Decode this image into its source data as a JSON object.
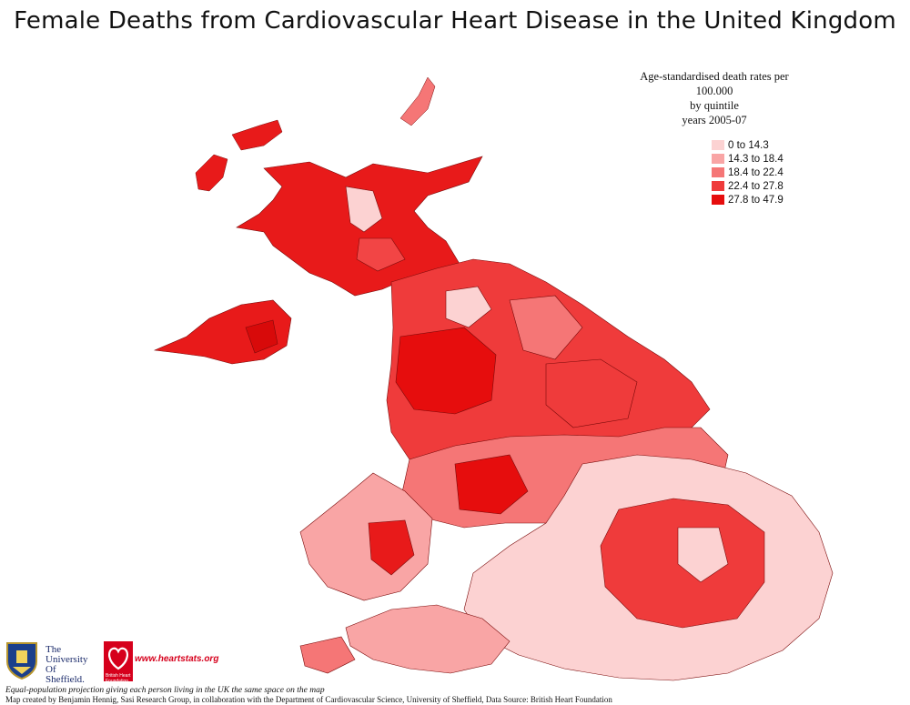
{
  "title": "Female Deaths from Cardiovascular Heart Disease in the United Kingdom",
  "legend": {
    "heading_line1": "Age-standardised death rates per 100.000",
    "heading_line2": "by quintile",
    "heading_line3": "years 2005-07",
    "items": [
      {
        "label": "0 to 14.3",
        "color": "#fcd2d2"
      },
      {
        "label": "14.3 to 18.4",
        "color": "#f9a5a5"
      },
      {
        "label": "18.4 to 22.4",
        "color": "#f57676"
      },
      {
        "label": "22.4 to 27.8",
        "color": "#ef3b3b"
      },
      {
        "label": "27.8 to 47.9",
        "color": "#e60d0d"
      }
    ]
  },
  "logos": {
    "university_line1": "The",
    "university_line2": "University",
    "university_line3": "Of",
    "university_line4": "Sheffield.",
    "bhf_text": "British Heart Foundation",
    "website": "www.heartstats.org"
  },
  "footer": {
    "line1": "Equal-population projection giving each person living in the UK the same space on the map",
    "line2": "Map created by Benjamin Hennig, Sasi Research Group, in collaboration with the Department of Cardiovascular Science, University of Sheffield, Data Source: British Heart Foundation"
  }
}
